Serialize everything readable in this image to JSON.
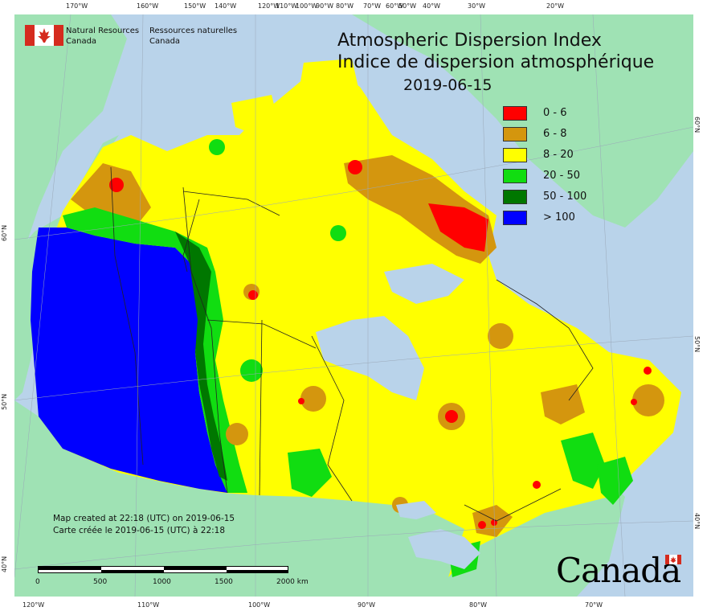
{
  "title": {
    "en": "Atmospheric Dispersion Index",
    "fr": "Indice de dispersion atmosphérique",
    "date": "2019-06-15"
  },
  "agency": {
    "en_line1": "Natural Resources",
    "en_line2": "Canada",
    "fr_line1": "Ressources naturelles",
    "fr_line2": "Canada"
  },
  "legend": [
    {
      "label": "0 - 6",
      "color": "#ff0000"
    },
    {
      "label": "6 - 8",
      "color": "#d4960e"
    },
    {
      "label": "8 - 20",
      "color": "#ffff00"
    },
    {
      "label": "20 - 50",
      "color": "#11dd11"
    },
    {
      "label": "50 - 100",
      "color": "#007700"
    },
    {
      "label": "> 100",
      "color": "#0000ff"
    }
  ],
  "created": {
    "en": "Map created at 22:18 (UTC) on 2019-06-15",
    "fr": "Carte créée le 2019-06-15 (UTC) à 22:18"
  },
  "scale": {
    "labels": [
      "0",
      "500",
      "1000",
      "1500",
      "2000 km"
    ]
  },
  "graticule": {
    "top": [
      "170°W",
      "160°W",
      "150°W",
      "140°W",
      "120°W",
      "110°W",
      "100°W",
      "90°W",
      "80°W",
      "70°W",
      "60°W",
      "50°W",
      "40°W",
      "30°W",
      "20°W"
    ],
    "bottom": [
      "120°W",
      "110°W",
      "100°W",
      "90°W",
      "80°W",
      "70°W"
    ],
    "left": [
      "60°N",
      "50°N",
      "40°N"
    ],
    "right": [
      "60°N",
      "50°N",
      "40°N"
    ]
  },
  "wordmark": "Canada",
  "colors": {
    "water": "#b9d3ea",
    "land_other": "#9fe2b4",
    "greenland": "#9fe2b4"
  }
}
